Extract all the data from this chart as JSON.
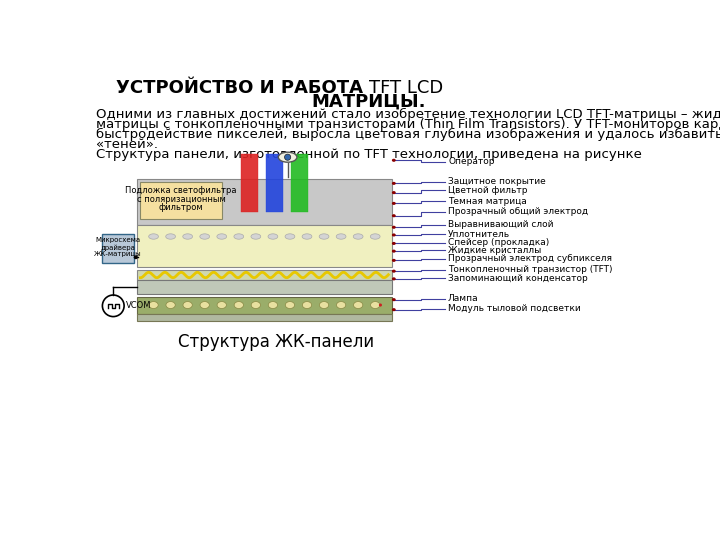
{
  "title_bold": "УСТРОЙСТВО И РАБОТА ",
  "title_normal": "TFT LCD",
  "title_line2": "МАТРИЦЫ.",
  "body_text": "Одними из главных достижений стало изобретение технологии LCD TFT-матрицы – жидкокристаллической\nматрицы с тонкопленочными транзисторами (Thin Film Transistors). У TFT-мониторов кардинально возросло\nбыстродействие пикселей, выросла цветовая глубина изображения и удалось избавиться от «хвостов» и\n«теней».\nСтруктура панели, изготовленной по TFT технологии, приведена на рисунке",
  "caption": "Структура ЖК-панели",
  "bg_color": "#ffffff",
  "text_color": "#000000",
  "title_fontsize": 13,
  "body_fontsize": 9.5,
  "caption_fontsize": 12,
  "labels_right": [
    "Оператор",
    "Защитное покрытие",
    "Цветной фильтр",
    "Темная матрица",
    "Прозрачный общий электрод",
    "Выравнивающий слой",
    "Уплотнитель",
    "Спейсер (прокладка)",
    "Жидкие кристаллы",
    "Прозрачный электрод субпикселя",
    "Тонкопленочный транзистор (TFT)",
    "Запоминающий конденсатор",
    "Лампа",
    "Модуль тыловой подсветки"
  ],
  "label_color": "#000000",
  "arrow_color": "#8b0000",
  "line_color": "#4040a0"
}
